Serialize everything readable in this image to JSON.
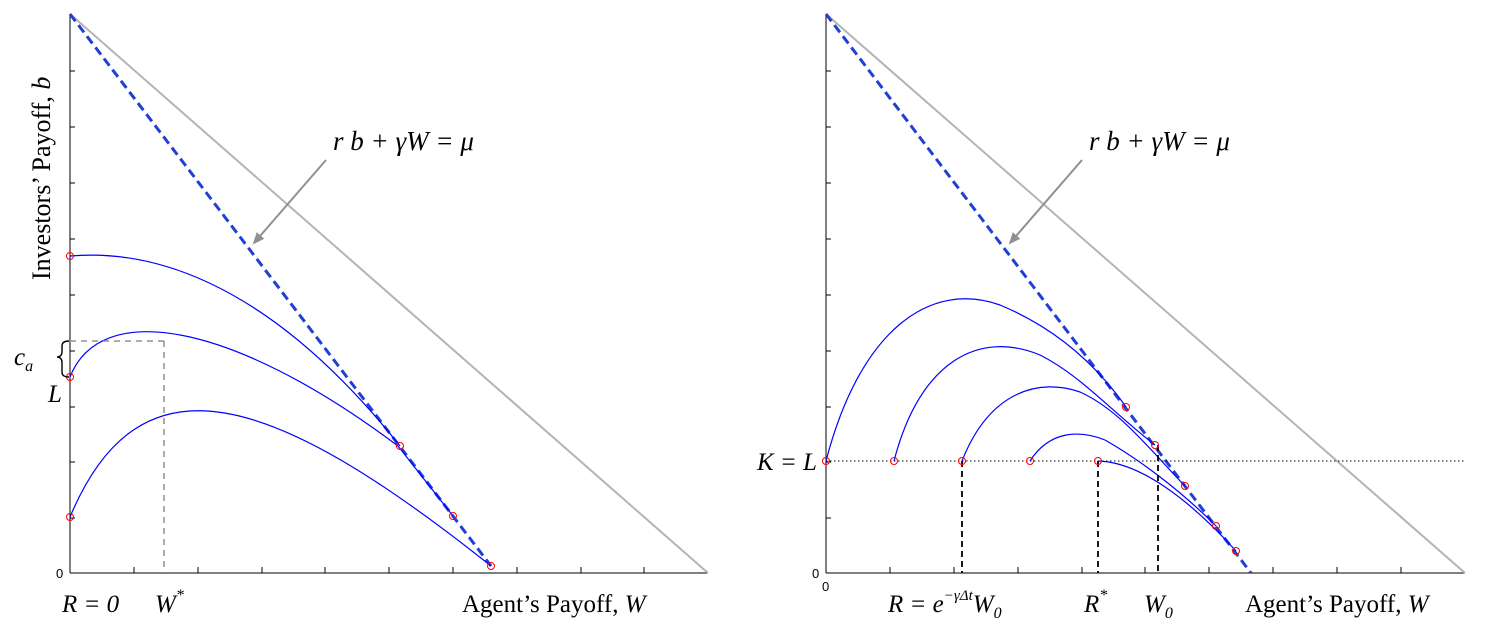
{
  "left_panel": {
    "y_axis_label": "Investors’ Payoff,",
    "y_axis_var": "b",
    "x_axis_label": "Agent’s Payoff,",
    "x_axis_var": "W",
    "origin_tick": "0",
    "x_marker_r": "R = 0",
    "x_marker_wstar": "W",
    "x_marker_wstar_sup": "*",
    "equation": "r b + γW = μ",
    "label_ca": "c",
    "label_ca_sub": "a",
    "label_l": "L"
  },
  "right_panel": {
    "x_axis_label": "Agent’s Payoff,",
    "x_axis_var": "W",
    "origin_tick_y": "0",
    "origin_tick_x": "0",
    "equation": "r b + γW = μ",
    "label_kl": "K = L",
    "x_marker_r_prefix": "R = e",
    "x_marker_r_exp": "−γΔt",
    "x_marker_r_suffix": "W",
    "x_marker_r_suffix_sub": "0",
    "x_marker_rstar": "R",
    "x_marker_rstar_sup": "*",
    "x_marker_w0": "W",
    "x_marker_w0_sub": "0"
  },
  "colors": {
    "curve": "#0000ff",
    "dashed_line": "#1f3fd6",
    "gray_line": "#b4b4b4",
    "marker": "#ff0000",
    "arrow": "#909090"
  }
}
